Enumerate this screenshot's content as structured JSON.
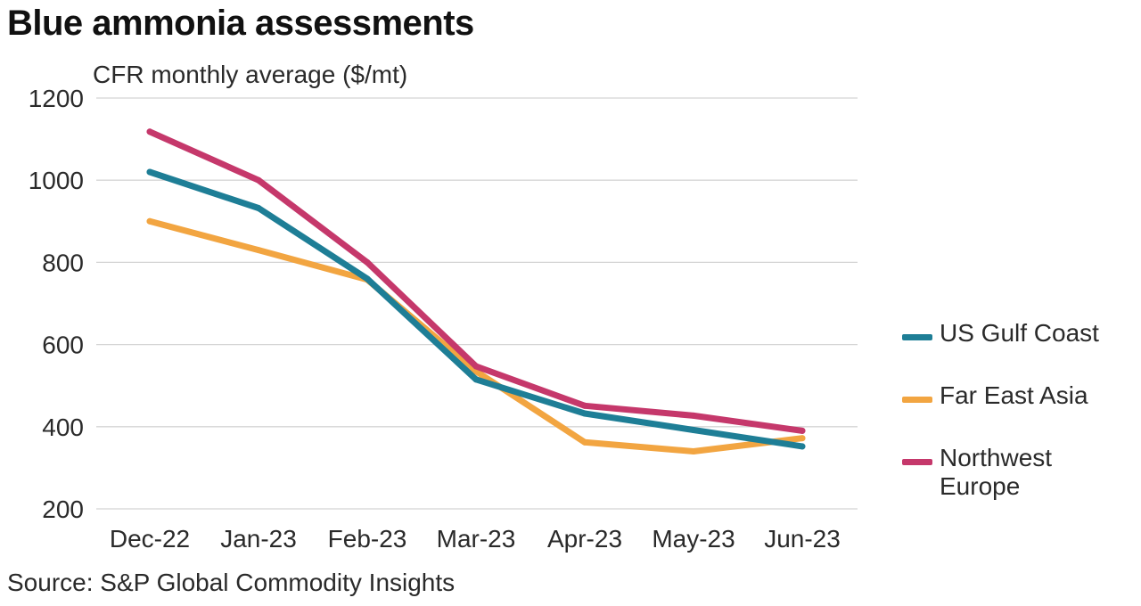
{
  "title": "Blue ammonia assessments",
  "subtitle": "CFR monthly average ($/mt)",
  "source": "Source: S&P Global Commodity Insights",
  "chart_data": {
    "type": "line",
    "title": "Blue ammonia assessments",
    "subtitle": "CFR monthly average ($/mt)",
    "xlabel": "",
    "ylabel": "",
    "categories": [
      "Dec-22",
      "Jan-23",
      "Feb-23",
      "Mar-23",
      "Apr-23",
      "May-23",
      "Jun-23"
    ],
    "yticks": [
      "200",
      "400",
      "600",
      "800",
      "1000",
      "1200"
    ],
    "ylim": [
      200,
      1200
    ],
    "grid": "horizontal",
    "legend_position": "right",
    "series": [
      {
        "name": "US Gulf Coast",
        "color": "#1e7e96",
        "values": [
          1020,
          932,
          760,
          515,
          432,
          392,
          352
        ]
      },
      {
        "name": "Far East Asia",
        "color": "#f2a541",
        "values": [
          900,
          830,
          758,
          535,
          362,
          340,
          372
        ]
      },
      {
        "name": "Northwest Europe",
        "color": "#c5386b",
        "values": [
          1118,
          1000,
          800,
          547,
          451,
          427,
          390
        ]
      }
    ]
  }
}
